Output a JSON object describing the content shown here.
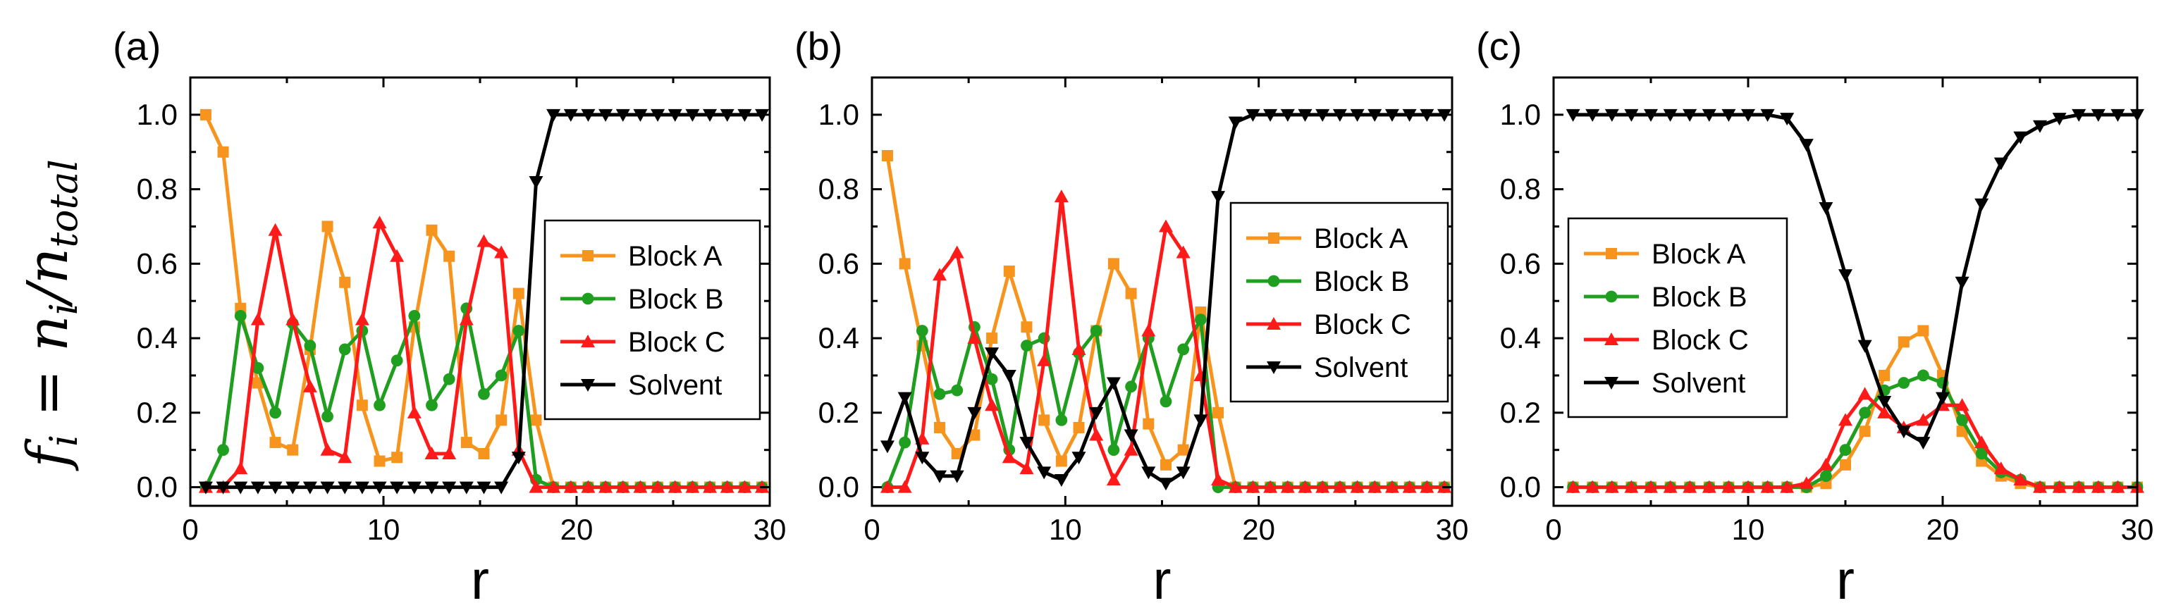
{
  "ylabel": {
    "f": "f",
    "f_sub": "i",
    "eq": " = ",
    "n": "n",
    "n_sub": "i",
    "slash": "/",
    "n2": "n",
    "n2_sub": "total"
  },
  "colors": {
    "Block A": "#f7941d",
    "Block B": "#1f9e1f",
    "Block C": "#ff1a1a",
    "Solvent": "#000000"
  },
  "chart_data": [
    {
      "type": "line",
      "panel_label": "(a)",
      "xlabel": "r",
      "ylabel": "f_i = n_i/n_total",
      "xlim": [
        0,
        30
      ],
      "ylim": [
        -0.05,
        1.1
      ],
      "xticks": [
        0,
        10,
        20,
        30
      ],
      "yticks": [
        0.0,
        0.2,
        0.4,
        0.6,
        0.8,
        1.0
      ],
      "legend_position": "right-middle",
      "x": [
        0.8,
        1.7,
        2.6,
        3.5,
        4.4,
        5.3,
        6.2,
        7.1,
        8.0,
        8.9,
        9.8,
        10.7,
        11.6,
        12.5,
        13.4,
        14.3,
        15.2,
        16.1,
        17.0,
        17.9,
        18.8,
        19.7,
        20.6,
        21.5,
        22.4,
        23.3,
        24.2,
        25.1,
        26.0,
        26.9,
        27.8,
        28.7,
        29.6
      ],
      "series": [
        {
          "name": "Block A",
          "marker": "square",
          "values": [
            1.0,
            0.9,
            0.48,
            0.28,
            0.12,
            0.1,
            0.37,
            0.7,
            0.55,
            0.22,
            0.07,
            0.08,
            0.43,
            0.69,
            0.62,
            0.12,
            0.09,
            0.18,
            0.52,
            0.18,
            0,
            0,
            0,
            0,
            0,
            0,
            0,
            0,
            0,
            0,
            0,
            0,
            0
          ]
        },
        {
          "name": "Block B",
          "marker": "circle",
          "values": [
            0,
            0.1,
            0.46,
            0.32,
            0.2,
            0.44,
            0.38,
            0.19,
            0.37,
            0.42,
            0.22,
            0.34,
            0.46,
            0.22,
            0.29,
            0.48,
            0.25,
            0.3,
            0.42,
            0.02,
            0,
            0,
            0,
            0,
            0,
            0,
            0,
            0,
            0,
            0,
            0,
            0,
            0
          ]
        },
        {
          "name": "Block C",
          "marker": "triangle-up",
          "values": [
            0,
            0,
            0.05,
            0.45,
            0.69,
            0.45,
            0.27,
            0.1,
            0.08,
            0.45,
            0.71,
            0.62,
            0.2,
            0.09,
            0.09,
            0.45,
            0.66,
            0.63,
            0.1,
            0,
            0,
            0,
            0,
            0,
            0,
            0,
            0,
            0,
            0,
            0,
            0,
            0,
            0
          ]
        },
        {
          "name": "Solvent",
          "marker": "triangle-down",
          "values": [
            0,
            0,
            0,
            0,
            0,
            0,
            0,
            0,
            0,
            0,
            0,
            0,
            0,
            0,
            0,
            0,
            0,
            0,
            0.08,
            0.82,
            1.0,
            1.0,
            1.0,
            1.0,
            1.0,
            1.0,
            1.0,
            1.0,
            1.0,
            1.0,
            1.0,
            1.0,
            1.0
          ]
        }
      ]
    },
    {
      "type": "line",
      "panel_label": "(b)",
      "xlabel": "r",
      "ylabel": "",
      "xlim": [
        0,
        30
      ],
      "ylim": [
        -0.05,
        1.1
      ],
      "xticks": [
        0,
        10,
        20,
        30
      ],
      "yticks": [
        0.0,
        0.2,
        0.4,
        0.6,
        0.8,
        1.0
      ],
      "legend_position": "right-middle",
      "x": [
        0.8,
        1.7,
        2.6,
        3.5,
        4.4,
        5.3,
        6.2,
        7.1,
        8.0,
        8.9,
        9.8,
        10.7,
        11.6,
        12.5,
        13.4,
        14.3,
        15.2,
        16.1,
        17.0,
        17.9,
        18.8,
        19.7,
        20.6,
        21.5,
        22.4,
        23.3,
        24.2,
        25.1,
        26.0,
        26.9,
        27.8,
        28.7,
        29.6
      ],
      "series": [
        {
          "name": "Block A",
          "marker": "square",
          "values": [
            0.89,
            0.6,
            0.38,
            0.16,
            0.09,
            0.14,
            0.4,
            0.58,
            0.43,
            0.18,
            0.07,
            0.16,
            0.42,
            0.6,
            0.52,
            0.17,
            0.06,
            0.1,
            0.47,
            0.2,
            0,
            0,
            0,
            0,
            0,
            0,
            0,
            0,
            0,
            0,
            0,
            0,
            0
          ]
        },
        {
          "name": "Block B",
          "marker": "circle",
          "values": [
            0,
            0.12,
            0.42,
            0.25,
            0.26,
            0.43,
            0.29,
            0.1,
            0.38,
            0.4,
            0.18,
            0.36,
            0.42,
            0.1,
            0.27,
            0.4,
            0.23,
            0.37,
            0.45,
            0,
            0,
            0,
            0,
            0,
            0,
            0,
            0,
            0,
            0,
            0,
            0,
            0,
            0
          ]
        },
        {
          "name": "Block C",
          "marker": "triangle-up",
          "values": [
            0,
            0,
            0.13,
            0.57,
            0.63,
            0.4,
            0.22,
            0.08,
            0.05,
            0.34,
            0.78,
            0.37,
            0.14,
            0.02,
            0.1,
            0.42,
            0.7,
            0.63,
            0.3,
            0.02,
            0,
            0,
            0,
            0,
            0,
            0,
            0,
            0,
            0,
            0,
            0,
            0,
            0
          ]
        },
        {
          "name": "Solvent",
          "marker": "triangle-down",
          "values": [
            0.11,
            0.24,
            0.08,
            0.03,
            0.03,
            0.2,
            0.36,
            0.3,
            0.12,
            0.04,
            0.02,
            0.08,
            0.2,
            0.28,
            0.14,
            0.04,
            0.01,
            0.04,
            0.18,
            0.78,
            0.98,
            1.0,
            1.0,
            1.0,
            1.0,
            1.0,
            1.0,
            1.0,
            1.0,
            1.0,
            1.0,
            1.0,
            1.0
          ]
        }
      ]
    },
    {
      "type": "line",
      "panel_label": "(c)",
      "xlabel": "r",
      "ylabel": "",
      "xlim": [
        0,
        30
      ],
      "ylim": [
        -0.05,
        1.1
      ],
      "xticks": [
        0,
        10,
        20,
        30
      ],
      "yticks": [
        0.0,
        0.2,
        0.4,
        0.6,
        0.8,
        1.0
      ],
      "legend_position": "left-middle",
      "x": [
        1.0,
        2.0,
        3.0,
        4.0,
        5.0,
        6.0,
        7.0,
        8.0,
        9.0,
        10.0,
        11.0,
        12.0,
        13.0,
        14.0,
        15.0,
        16.0,
        17.0,
        18.0,
        19.0,
        20.0,
        21.0,
        22.0,
        23.0,
        24.0,
        25.0,
        26.0,
        27.0,
        28.0,
        29.0,
        30.0
      ],
      "series": [
        {
          "name": "Block A",
          "marker": "square",
          "values": [
            0,
            0,
            0,
            0,
            0,
            0,
            0,
            0,
            0,
            0,
            0,
            0,
            0,
            0.01,
            0.06,
            0.15,
            0.3,
            0.39,
            0.42,
            0.3,
            0.15,
            0.07,
            0.03,
            0.01,
            0,
            0,
            0,
            0,
            0,
            0
          ]
        },
        {
          "name": "Block B",
          "marker": "circle",
          "values": [
            0,
            0,
            0,
            0,
            0,
            0,
            0,
            0,
            0,
            0,
            0,
            0,
            0,
            0.03,
            0.1,
            0.2,
            0.26,
            0.28,
            0.3,
            0.28,
            0.18,
            0.09,
            0.04,
            0.02,
            0,
            0,
            0,
            0,
            0,
            0
          ]
        },
        {
          "name": "Block C",
          "marker": "triangle-up",
          "values": [
            0,
            0,
            0,
            0,
            0,
            0,
            0,
            0,
            0,
            0,
            0,
            0,
            0.01,
            0.06,
            0.18,
            0.25,
            0.2,
            0.16,
            0.18,
            0.22,
            0.22,
            0.12,
            0.05,
            0.02,
            0,
            0,
            0,
            0,
            0,
            0
          ]
        },
        {
          "name": "Solvent",
          "marker": "triangle-down",
          "values": [
            1.0,
            1.0,
            1.0,
            1.0,
            1.0,
            1.0,
            1.0,
            1.0,
            1.0,
            1.0,
            1.0,
            0.99,
            0.92,
            0.75,
            0.57,
            0.38,
            0.23,
            0.15,
            0.12,
            0.24,
            0.55,
            0.76,
            0.87,
            0.94,
            0.97,
            0.99,
            1.0,
            1.0,
            1.0,
            1.0
          ]
        }
      ]
    }
  ]
}
